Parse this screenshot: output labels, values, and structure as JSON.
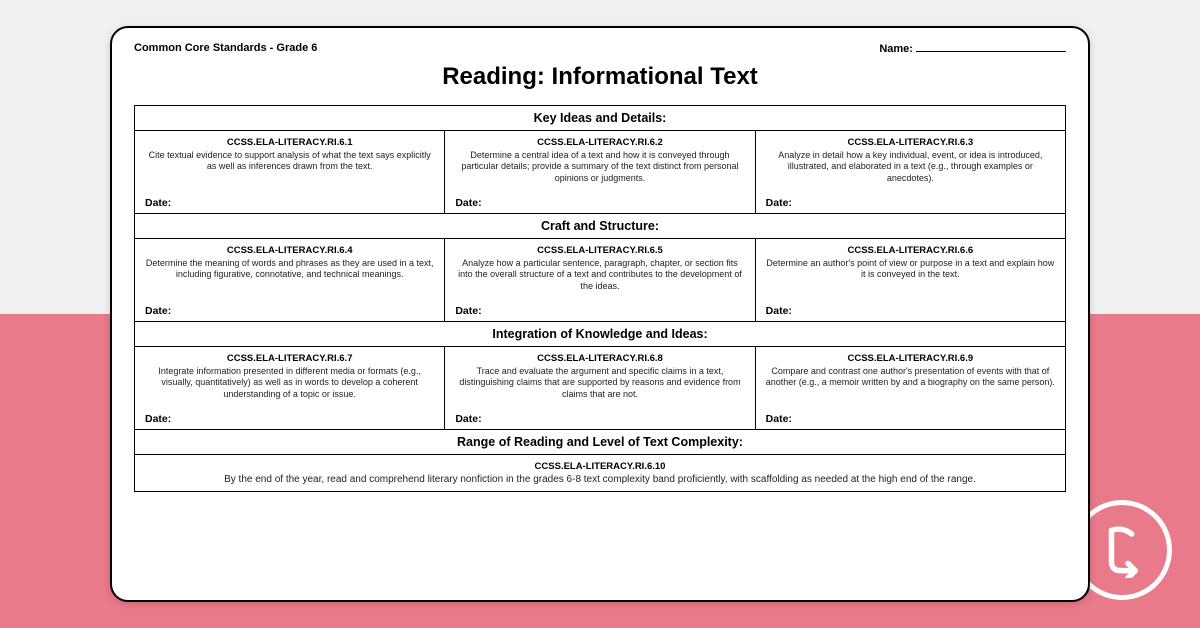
{
  "colors": {
    "accent": "#e87a8a",
    "page_bg": "#f0f0f0",
    "sheet_bg": "#ffffff",
    "border": "#000000"
  },
  "header": {
    "left": "Common Core Standards - Grade 6",
    "name_label": "Name:"
  },
  "title": "Reading: Informational Text",
  "date_label": "Date:",
  "sections": [
    {
      "heading": "Key Ideas and Details:",
      "cells": [
        {
          "code": "CCSS.ELA-LITERACY.RI.6.1",
          "desc": "Cite textual evidence to support analysis of what the text says explicitly as well as inferences drawn from the text."
        },
        {
          "code": "CCSS.ELA-LITERACY.RI.6.2",
          "desc": "Determine a central idea of a text and how it is conveyed through particular details; provide a summary of the text distinct from personal opinions or judgments."
        },
        {
          "code": "CCSS.ELA-LITERACY.RI.6.3",
          "desc": "Analyze in detail how a key individual, event, or idea is introduced, illustrated, and elaborated in a text (e.g., through examples or anecdotes)."
        }
      ]
    },
    {
      "heading": "Craft and Structure:",
      "cells": [
        {
          "code": "CCSS.ELA-LITERACY.RI.6.4",
          "desc": "Determine the meaning of words and phrases as they are used in a text, including figurative, connotative, and technical meanings."
        },
        {
          "code": "CCSS.ELA-LITERACY.RI.6.5",
          "desc": "Analyze how a particular sentence, paragraph, chapter, or section fits into the overall structure of a text and contributes to the development of the ideas."
        },
        {
          "code": "CCSS.ELA-LITERACY.RI.6.6",
          "desc": "Determine an author's point of view or purpose in a text and explain how it is conveyed in the text."
        }
      ]
    },
    {
      "heading": "Integration of Knowledge and Ideas:",
      "cells": [
        {
          "code": "CCSS.ELA-LITERACY.RI.6.7",
          "desc": "Integrate information presented in different media or formats (e.g., visually, quantitatively) as well as in words to develop a coherent understanding of a topic or issue."
        },
        {
          "code": "CCSS.ELA-LITERACY.RI.6.8",
          "desc": "Trace and evaluate the argument and specific claims in a text, distinguishing claims that are supported by reasons and evidence from claims that are not."
        },
        {
          "code": "CCSS.ELA-LITERACY.RI.6.9",
          "desc": "Compare and contrast one author's presentation of events with that of another (e.g., a memoir written by and a biography on the same person)."
        }
      ]
    }
  ],
  "final": {
    "heading": "Range of Reading and Level of Text Complexity:",
    "code": "CCSS.ELA-LITERACY.RI.6.10",
    "desc": "By the end of the year, read and comprehend literary nonfiction in the grades 6-8 text complexity band proficiently, with scaffolding as needed at the high end of the range."
  }
}
